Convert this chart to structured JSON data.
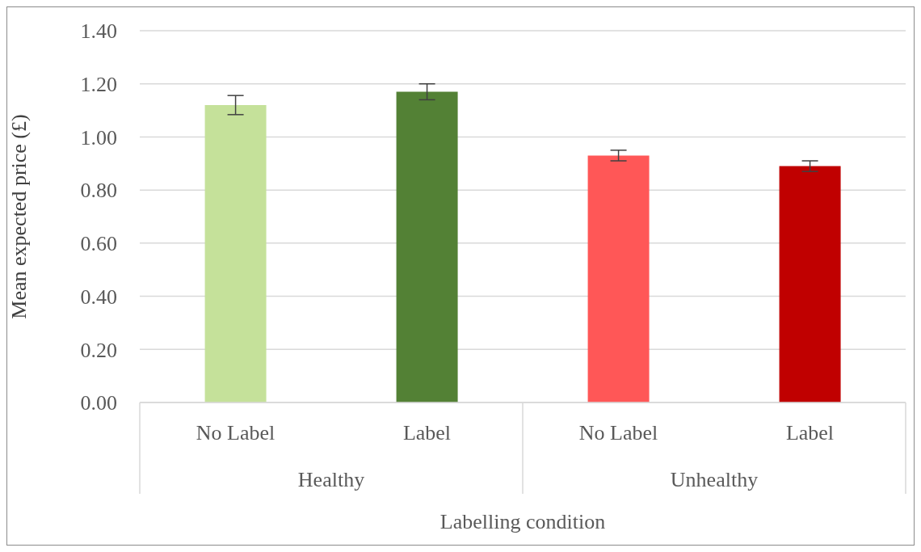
{
  "chart_data": {
    "type": "bar",
    "xlabel": "Labelling condition",
    "ylabel": "Mean expected price (£)",
    "categories": [
      "No Label",
      "Label",
      "No Label",
      "Label"
    ],
    "values": [
      1.12,
      1.17,
      0.93,
      0.89
    ],
    "errors": [
      0.036,
      0.03,
      0.02,
      0.02
    ],
    "colors": [
      "#c5e19a",
      "#538135",
      "#ff5757",
      "#c00000"
    ],
    "annotations": [
      "Healthy",
      "Unhealthy"
    ],
    "ylim": [
      0,
      1.4
    ],
    "yticks": [
      {
        "value": 0,
        "label": "0.00"
      },
      {
        "value": 0.2,
        "label": "0.20"
      },
      {
        "value": 0.4,
        "label": "0.40"
      },
      {
        "value": 0.6,
        "label": "0.60"
      },
      {
        "value": 0.8,
        "label": "0.80"
      },
      {
        "value": 1,
        "label": "1.00"
      },
      {
        "value": 1.2,
        "label": "1.20"
      },
      {
        "value": 1.4,
        "label": "1.40"
      }
    ],
    "grid": "y"
  }
}
